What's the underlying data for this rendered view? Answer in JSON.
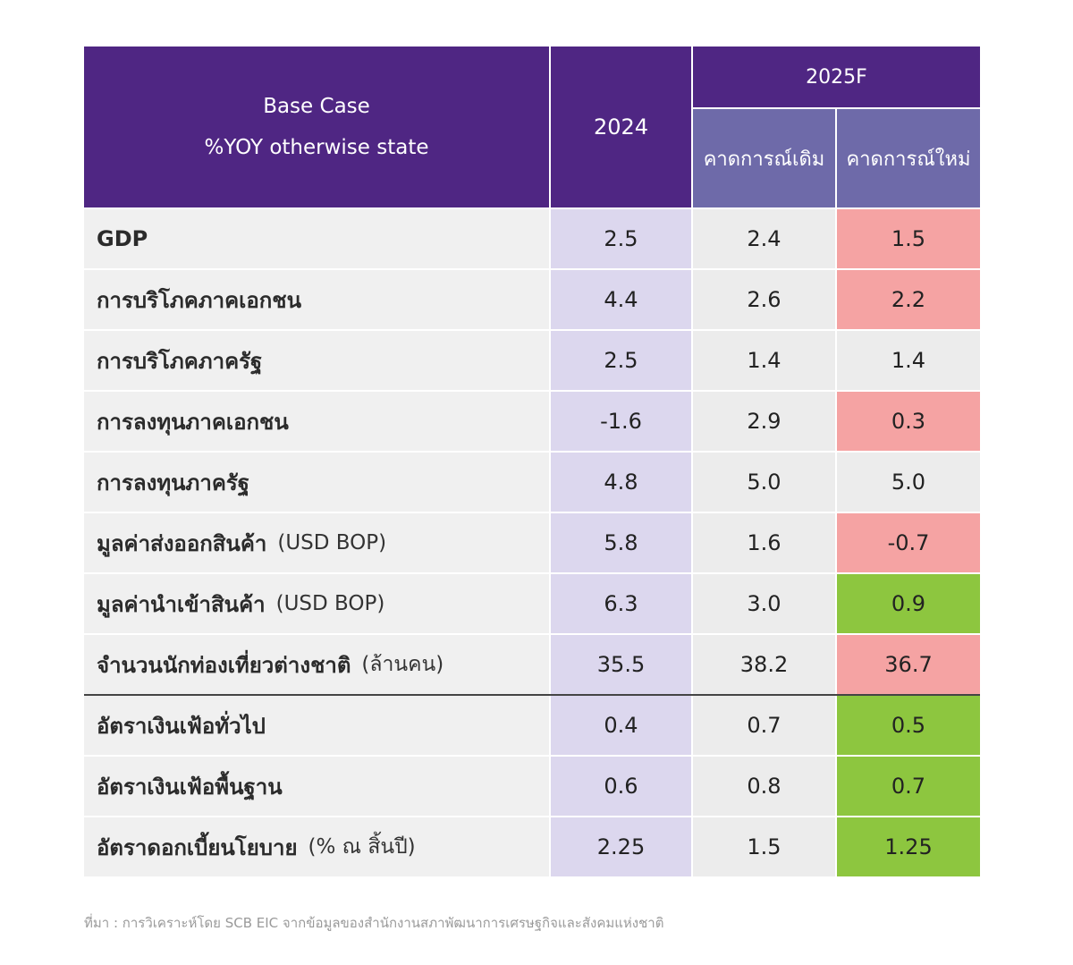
{
  "header": {
    "base_case_line1": "Base Case",
    "base_case_line2": "%YOY otherwise state",
    "col_2024": "2024",
    "col_2025f": "2025F",
    "col_old": "คาดการณ์เดิม",
    "col_new": "คาดการณ์ใหม่"
  },
  "colors": {
    "header_purple": "#4f2683",
    "subheader_purple": "#6e6aa9",
    "col_2024_bg": "#dcd7ee",
    "downgrade_red": "#f5a3a3",
    "upgrade_green": "#8dc63f",
    "neutral_gray": "#ececec"
  },
  "chart_data": {
    "type": "table",
    "columns": [
      "2024",
      "คาดการณ์เดิม",
      "คาดการณ์ใหม่"
    ],
    "rows": [
      {
        "label": "GDP",
        "unit": "",
        "v2024": "2.5",
        "old": "2.4",
        "new": "1.5",
        "status": "down"
      },
      {
        "label": "การบริโภคภาคเอกชน",
        "unit": "",
        "v2024": "4.4",
        "old": "2.6",
        "new": "2.2",
        "status": "down"
      },
      {
        "label": "การบริโภคภาครัฐ",
        "unit": "",
        "v2024": "2.5",
        "old": "1.4",
        "new": "1.4",
        "status": "same"
      },
      {
        "label": "การลงทุนภาคเอกชน",
        "unit": "",
        "v2024": "-1.6",
        "old": "2.9",
        "new": "0.3",
        "status": "down"
      },
      {
        "label": "การลงทุนภาครัฐ",
        "unit": "",
        "v2024": "4.8",
        "old": "5.0",
        "new": "5.0",
        "status": "same"
      },
      {
        "label": "มูลค่าส่งออกสินค้า",
        "unit": "(USD BOP)",
        "v2024": "5.8",
        "old": "1.6",
        "new": "-0.7",
        "status": "down"
      },
      {
        "label": "มูลค่านำเข้าสินค้า",
        "unit": "(USD BOP)",
        "v2024": "6.3",
        "old": "3.0",
        "new": "0.9",
        "status": "up"
      },
      {
        "label": "จำนวนนักท่องเที่ยวต่างชาติ",
        "unit": "(ล้านคน)",
        "v2024": "35.5",
        "old": "38.2",
        "new": "36.7",
        "status": "down"
      },
      {
        "label": "อัตราเงินเฟ้อทั่วไป",
        "unit": "",
        "v2024": "0.4",
        "old": "0.7",
        "new": "0.5",
        "status": "up"
      },
      {
        "label": "อัตราเงินเฟ้อพื้นฐาน",
        "unit": "",
        "v2024": "0.6",
        "old": "0.8",
        "new": "0.7",
        "status": "up"
      },
      {
        "label": "อัตราดอกเบี้ยนโยบาย",
        "unit": "(% ณ สิ้นปี)",
        "v2024": "2.25",
        "old": "1.5",
        "new": "1.25",
        "status": "up"
      }
    ]
  },
  "source": "ที่มา : การวิเคราะห์โดย SCB EIC จากข้อมูลของสำนักงานสภาพัฒนาการเศรษฐกิจและสังคมแห่งชาติ"
}
